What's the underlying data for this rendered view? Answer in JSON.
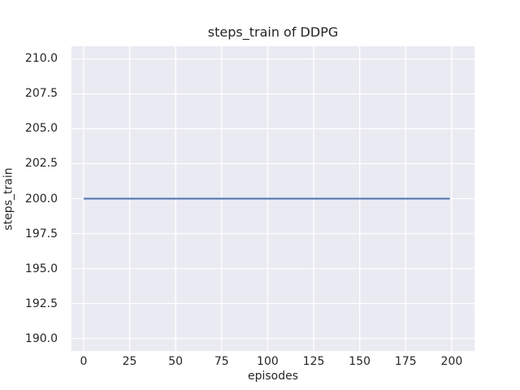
{
  "chart_data": {
    "type": "line",
    "title": "steps_train of DDPG",
    "xlabel": "episodes",
    "ylabel": "steps_train",
    "series": [
      {
        "name": "steps_train",
        "x": [
          0,
          199
        ],
        "y": [
          200,
          200
        ],
        "color": "#4C72B0",
        "linewidth": 2
      }
    ],
    "x_ticks": {
      "values": [
        0,
        25,
        50,
        75,
        100,
        125,
        150,
        175,
        200
      ],
      "labels": [
        "0",
        "25",
        "50",
        "75",
        "100",
        "125",
        "150",
        "175",
        "200"
      ]
    },
    "y_ticks": {
      "values": [
        190.0,
        192.5,
        195.0,
        197.5,
        200.0,
        202.5,
        205.0,
        207.5,
        210.0
      ],
      "labels": [
        "190.0",
        "192.5",
        "195.0",
        "197.5",
        "200.0",
        "202.5",
        "205.0",
        "207.5",
        "210.0"
      ]
    },
    "xlim": [
      -6.6,
      212.4
    ],
    "ylim": [
      189.1,
      210.9
    ],
    "grid": true,
    "legend_position": "none",
    "plot_background": "#EAEAF2",
    "grid_color": "#FFFFFF",
    "figure_background": "#FFFFFF",
    "text_color": "#262626"
  }
}
